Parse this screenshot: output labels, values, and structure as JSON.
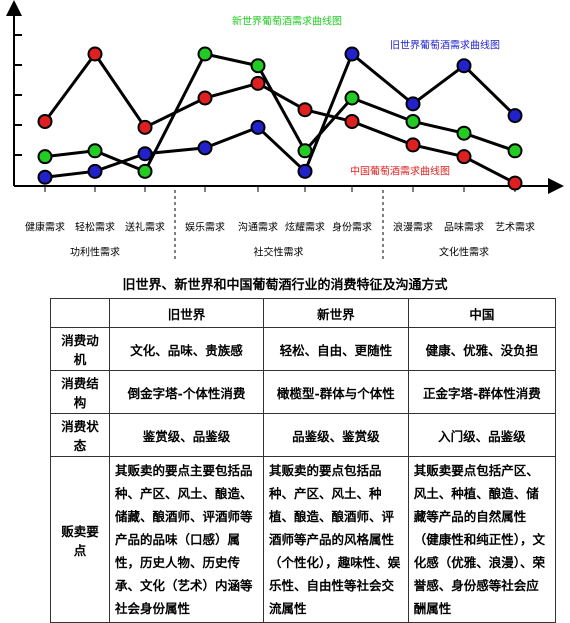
{
  "chart_data": {
    "type": "line",
    "categories": [
      "健康需求",
      "轻松需求",
      "送礼需求",
      "娱乐需求",
      "沟通需求",
      "炫耀需求",
      "身份需求",
      "浪漫需求",
      "品味需求",
      "艺术需求"
    ],
    "groups": [
      {
        "label": "功利性需求",
        "span": [
          0,
          2
        ]
      },
      {
        "label": "社交性需求",
        "span": [
          3,
          6
        ]
      },
      {
        "label": "文化性需求",
        "span": [
          7,
          9
        ]
      }
    ],
    "ylim": [
      0,
      6
    ],
    "series": [
      {
        "name": "新世界葡萄酒需求曲线图",
        "color": "#22cc22",
        "values": [
          1.0,
          1.2,
          0.5,
          4.5,
          4.1,
          1.2,
          3.0,
          2.2,
          1.8,
          1.2
        ]
      },
      {
        "name": "旧世界葡萄酒需求曲线图",
        "color": "#2222cc",
        "values": [
          0.3,
          0.5,
          1.1,
          1.3,
          2.0,
          0.5,
          4.5,
          2.8,
          4.1,
          2.4
        ]
      },
      {
        "name": "中国葡萄酒需求曲线图",
        "color": "#e02020",
        "values": [
          2.2,
          4.5,
          2.0,
          3.0,
          3.5,
          2.6,
          2.2,
          1.4,
          1.0,
          0.1
        ]
      }
    ]
  },
  "title": "旧世界、新世界和中国葡萄酒行业的消费特征及沟通方式",
  "table": {
    "header": [
      "",
      "旧世界",
      "新世界",
      "中国"
    ],
    "rows": [
      [
        "消费动机",
        "文化、品味、贵族感",
        "轻松、自由、更随性",
        "健康、优雅、没负担"
      ],
      [
        "消费结构",
        "倒金字塔-个体性消费",
        "橄榄型-群体与个体性",
        "正金字塔-群体性消费"
      ],
      [
        "消费状态",
        "鉴赏级、品鉴级",
        "品鉴级、鉴赏级",
        "入门级、品鉴级"
      ],
      [
        "贩卖要点",
        "其贩卖的要点主要包括品种、产区、风土、酿造、储藏、酿酒师、评酒师等产品的品味（口感）属性，历史人物、历史传承、文化（艺术）内涵等社会身份属性",
        "其贩卖的要点包括品种、产区、风土、种植、酿造、酿酒师、评酒师等产品的风格属性（个性化），趣味性、娱乐性、自由性等社会交流属性",
        "其贩卖要点包括产区、风土、种植、酿造、储藏等产品的自然属性（健康性和纯正性），文化感（优雅、浪漫）、荣誉感、身份感等社会应酬属性"
      ]
    ]
  }
}
